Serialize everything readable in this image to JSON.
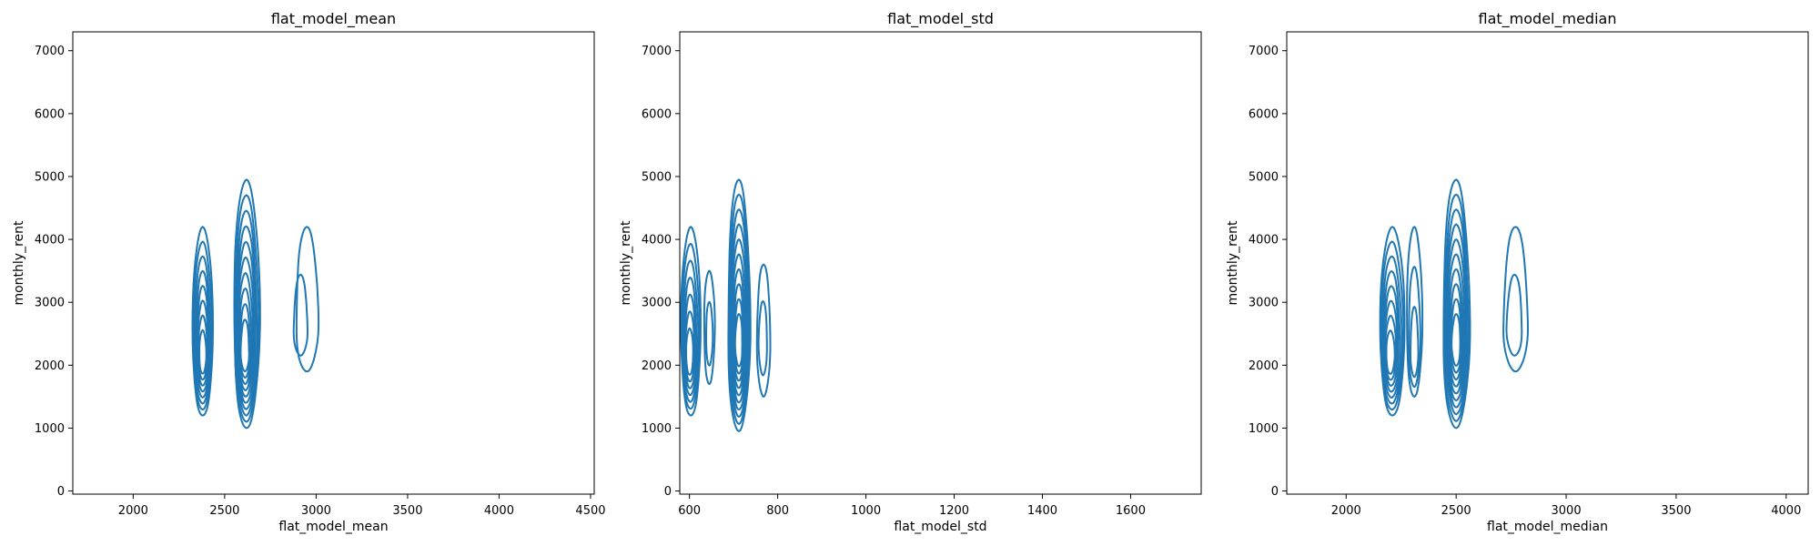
{
  "chart_data": [
    {
      "type": "kde_contour",
      "title": "flat_model_mean",
      "xlabel": "flat_model_mean",
      "ylabel": "monthly_rent",
      "xlim": [
        1670,
        4520
      ],
      "ylim": [
        -50,
        7300
      ],
      "xticks": [
        2000,
        2500,
        3000,
        3500,
        4000,
        4500
      ],
      "yticks": [
        0,
        1000,
        2000,
        3000,
        4000,
        5000,
        6000,
        7000
      ],
      "line_color": "#1f77b4",
      "blobs": [
        {
          "cx": 2380,
          "cy": 2350,
          "rx": 55,
          "ry_up": 1850,
          "ry_down": 1150,
          "levels": 8,
          "core": [
            2380,
            2100
          ]
        },
        {
          "cx": 2620,
          "cy": 2650,
          "rx": 70,
          "ry_up": 2300,
          "ry_down": 1650,
          "levels": 10,
          "core": [
            2610,
            2200
          ]
        },
        {
          "cx": 2950,
          "cy": 2700,
          "rx": 60,
          "ry_up": 1500,
          "ry_down": 800,
          "levels": 2,
          "core": [
            2880,
            2500
          ]
        }
      ]
    },
    {
      "type": "kde_contour",
      "title": "flat_model_std",
      "xlabel": "flat_model_std",
      "ylabel": "monthly_rent",
      "xlim": [
        578,
        1760
      ],
      "ylim": [
        -50,
        7300
      ],
      "xticks": [
        600,
        800,
        1000,
        1200,
        1400,
        1600
      ],
      "yticks": [
        0,
        1000,
        2000,
        3000,
        4000,
        5000,
        6000,
        7000
      ],
      "line_color": "#1f77b4",
      "blobs": [
        {
          "cx": 603,
          "cy": 2400,
          "rx": 22,
          "ry_up": 1800,
          "ry_down": 1200,
          "levels": 7,
          "core": [
            600,
            2100
          ]
        },
        {
          "cx": 645,
          "cy": 2600,
          "rx": 12,
          "ry_up": 900,
          "ry_down": 900,
          "levels": 2,
          "core": [
            645,
            2400
          ]
        },
        {
          "cx": 712,
          "cy": 2650,
          "rx": 25,
          "ry_up": 2300,
          "ry_down": 1700,
          "levels": 10,
          "core": [
            712,
            2300
          ]
        },
        {
          "cx": 768,
          "cy": 2500,
          "rx": 15,
          "ry_up": 1100,
          "ry_down": 1000,
          "levels": 2,
          "core": [
            765,
            2300
          ]
        }
      ]
    },
    {
      "type": "kde_contour",
      "title": "flat_model_median",
      "xlabel": "flat_model_median",
      "ylabel": "monthly_rent",
      "xlim": [
        1730,
        4100
      ],
      "ylim": [
        -50,
        7300
      ],
      "xticks": [
        2000,
        2500,
        3000,
        3500,
        4000
      ],
      "yticks": [
        0,
        1000,
        2000,
        3000,
        4000,
        5000,
        6000,
        7000
      ],
      "line_color": "#1f77b4",
      "blobs": [
        {
          "cx": 2210,
          "cy": 2400,
          "rx": 55,
          "ry_up": 1800,
          "ry_down": 1200,
          "levels": 8,
          "core": [
            2200,
            2100
          ]
        },
        {
          "cx": 2310,
          "cy": 2600,
          "rx": 35,
          "ry_up": 1600,
          "ry_down": 1100,
          "levels": 3,
          "core": [
            2310,
            2100
          ]
        },
        {
          "cx": 2500,
          "cy": 2650,
          "rx": 60,
          "ry_up": 2300,
          "ry_down": 1650,
          "levels": 10,
          "core": [
            2500,
            2300
          ]
        },
        {
          "cx": 2770,
          "cy": 2700,
          "rx": 55,
          "ry_up": 1500,
          "ry_down": 800,
          "levels": 2,
          "core": [
            2760,
            2500
          ]
        }
      ]
    }
  ]
}
